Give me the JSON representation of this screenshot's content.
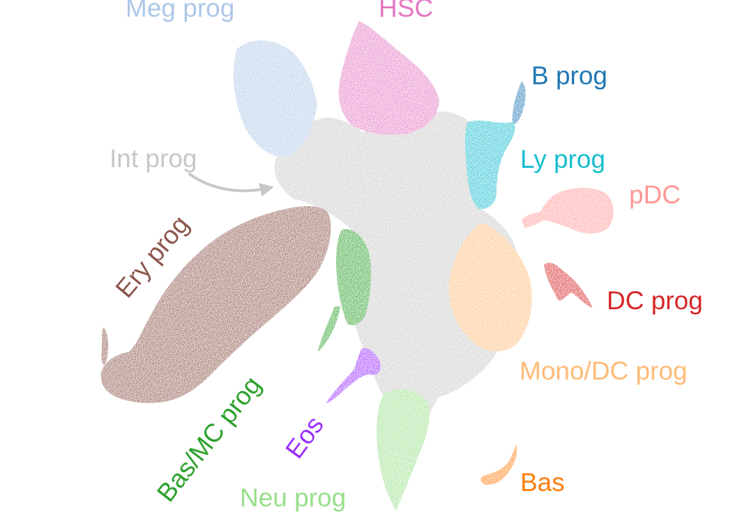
{
  "clusters": [
    {
      "id": "meg-prog",
      "label": "Meg prog",
      "color": "#aec7e8"
    },
    {
      "id": "hsc",
      "label": "HSC",
      "color": "#e377c2"
    },
    {
      "id": "b-prog",
      "label": "B prog",
      "color": "#1f77b4"
    },
    {
      "id": "ly-prog",
      "label": "Ly prog",
      "color": "#17becf"
    },
    {
      "id": "pdc",
      "label": "pDC",
      "color": "#ff9896"
    },
    {
      "id": "int-prog",
      "label": "Int prog",
      "color": "#c7c7c7"
    },
    {
      "id": "ery-prog",
      "label": "Ery prog",
      "color": "#8c564b"
    },
    {
      "id": "dc-prog",
      "label": "DC prog",
      "color": "#d62728"
    },
    {
      "id": "mono-dc-prog",
      "label": "Mono/DC prog",
      "color": "#ffbb78"
    },
    {
      "id": "bas-mc-prog",
      "label": "Bas/MC prog",
      "color": "#2ca02c"
    },
    {
      "id": "eos",
      "label": "Eos",
      "color": "#9b30ff"
    },
    {
      "id": "bas",
      "label": "Bas",
      "color": "#ff7f0e"
    },
    {
      "id": "neu-prog",
      "label": "Neu prog",
      "color": "#98df8a"
    }
  ]
}
